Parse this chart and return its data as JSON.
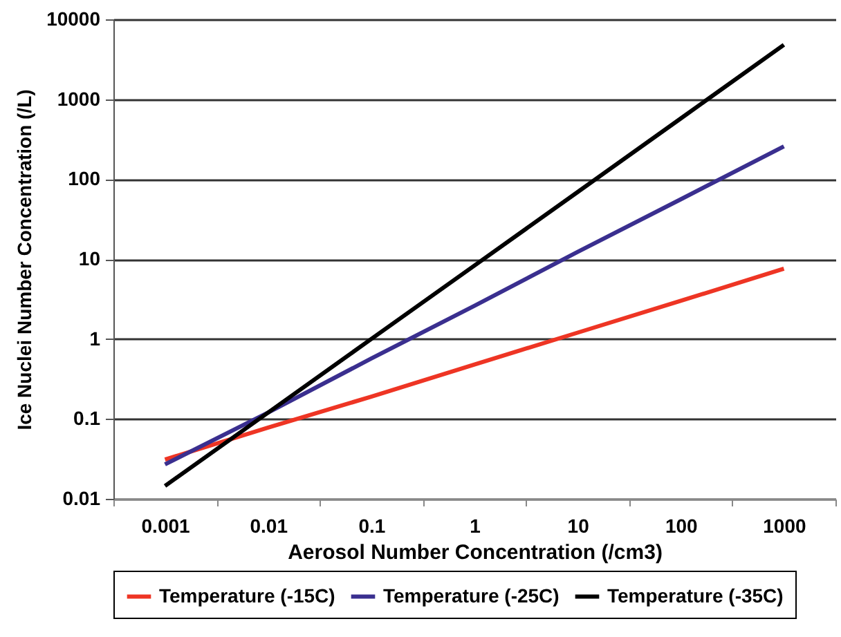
{
  "chart_data": {
    "type": "line",
    "xlabel": "Aerosol Number Concentration (/cm3)",
    "ylabel": "Ice Nuclei Number Concentration (/L)",
    "categories": [
      "0.001",
      "0.01",
      "0.1",
      "1",
      "10",
      "100",
      "1000"
    ],
    "series": [
      {
        "name": "Temperature (-15C)",
        "color": "#ee3524",
        "values": [
          0.031,
          0.078,
          0.19,
          0.48,
          1.2,
          3.0,
          7.6
        ]
      },
      {
        "name": "Temperature (-25C)",
        "color": "#3a2f8f",
        "values": [
          0.027,
          0.12,
          0.57,
          2.6,
          12.3,
          56,
          257
        ]
      },
      {
        "name": "Temperature (-35C)",
        "color": "#000000",
        "values": [
          0.0145,
          0.12,
          1.0,
          8.3,
          69,
          575,
          4800
        ]
      }
    ],
    "log": "y",
    "ylim": [
      0.01,
      10000
    ],
    "yticks": [
      0.01,
      0.1,
      1,
      10,
      100,
      1000,
      10000
    ],
    "grid": "y",
    "legend": "bottom",
    "marker": "none",
    "line_style": "solid"
  }
}
